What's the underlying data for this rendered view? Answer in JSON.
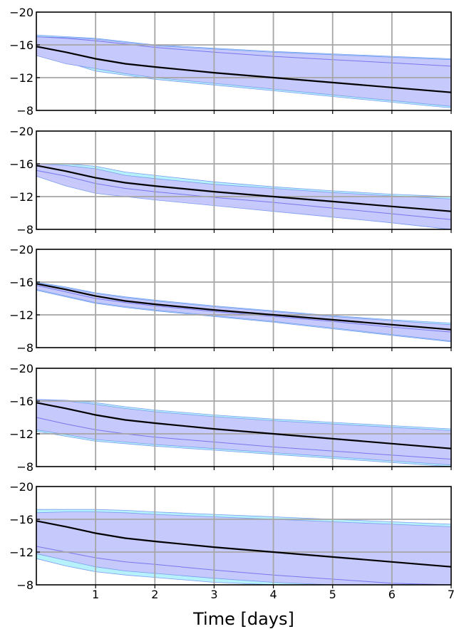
{
  "xlabel": "Time [days]",
  "chart_data": [
    {
      "type": "line",
      "x": [
        0,
        0.5,
        1,
        1.5,
        2,
        3,
        4,
        5,
        6,
        7
      ],
      "series": [
        {
          "values": [
            15.8,
            15.1,
            14.3,
            13.7,
            13.3,
            12.6,
            12.0,
            11.4,
            10.8,
            10.2
          ]
        }
      ],
      "bands": [
        {
          "lower": [
            15.0,
            13.9,
            12.8,
            12.3,
            11.8,
            11.1,
            10.4,
            9.7,
            9.0,
            8.3
          ],
          "upper": [
            17.2,
            17.0,
            16.8,
            16.4,
            16.0,
            15.6,
            15.2,
            14.9,
            14.6,
            14.3
          ],
          "color": "#b3f0fb"
        },
        {
          "lower": [
            14.7,
            13.7,
            13.1,
            12.5,
            12.0,
            11.3,
            10.6,
            9.9,
            9.2,
            8.5
          ],
          "upper": [
            17.0,
            16.9,
            16.7,
            16.3,
            15.9,
            15.5,
            15.1,
            14.8,
            14.5,
            14.2
          ],
          "color": "#c6c6fb"
        }
      ],
      "inner_line": [
        17.0,
        16.8,
        16.5,
        16.1,
        15.7,
        15.1,
        14.6,
        14.2,
        13.8,
        13.4
      ],
      "xlim": [
        0,
        7
      ],
      "ylim": [
        8,
        20
      ]
    },
    {
      "type": "line",
      "x": [
        0,
        0.5,
        1,
        1.5,
        2,
        3,
        4,
        5,
        6,
        7
      ],
      "series": [
        {
          "values": [
            15.8,
            15.1,
            14.3,
            13.7,
            13.3,
            12.6,
            12.0,
            11.4,
            10.8,
            10.2
          ]
        }
      ],
      "bands": [
        {
          "lower": [
            15.2,
            14.0,
            13.1,
            12.5,
            12.0,
            11.2,
            10.4,
            9.6,
            8.8,
            8.0
          ],
          "upper": [
            16.0,
            16.0,
            15.7,
            15.0,
            14.6,
            13.8,
            13.2,
            12.7,
            12.3,
            12.0
          ],
          "color": "#b3f0fb"
        },
        {
          "lower": [
            14.5,
            13.3,
            12.4,
            12.0,
            11.6,
            10.9,
            10.2,
            9.5,
            8.8,
            8.0
          ],
          "upper": [
            16.0,
            15.8,
            15.4,
            14.6,
            14.2,
            13.5,
            13.0,
            12.5,
            12.1,
            11.7
          ],
          "color": "#c6c6fb"
        }
      ],
      "inner_line": [
        15.2,
        14.5,
        13.6,
        13.0,
        12.6,
        11.9,
        11.3,
        10.6,
        9.9,
        9.2
      ],
      "xlim": [
        0,
        7
      ],
      "ylim": [
        8,
        20
      ]
    },
    {
      "type": "line",
      "x": [
        0,
        0.5,
        1,
        1.5,
        2,
        3,
        4,
        5,
        6,
        7
      ],
      "series": [
        {
          "values": [
            15.8,
            15.1,
            14.3,
            13.7,
            13.3,
            12.6,
            12.0,
            11.4,
            10.8,
            10.2
          ]
        }
      ],
      "bands": [
        {
          "lower": [
            15.0,
            14.2,
            13.4,
            12.9,
            12.5,
            11.8,
            11.1,
            10.3,
            9.5,
            8.7
          ],
          "upper": [
            16.0,
            15.4,
            14.7,
            14.2,
            13.8,
            13.1,
            12.5,
            11.9,
            11.4,
            11.0
          ],
          "color": "#b3f0fb"
        },
        {
          "lower": [
            15.1,
            14.3,
            13.5,
            13.0,
            12.6,
            11.9,
            11.2,
            10.4,
            9.6,
            8.8
          ],
          "upper": [
            15.9,
            15.3,
            14.6,
            14.1,
            13.7,
            13.0,
            12.4,
            11.8,
            11.3,
            10.8
          ],
          "color": "#c6c6fb"
        }
      ],
      "inner_line": [
        15.6,
        14.8,
        14.0,
        13.5,
        13.1,
        12.4,
        11.8,
        11.2,
        10.5,
        9.9
      ],
      "xlim": [
        0,
        7
      ],
      "ylim": [
        8,
        20
      ]
    },
    {
      "type": "line",
      "x": [
        0,
        0.5,
        1,
        1.5,
        2,
        3,
        4,
        5,
        6,
        7
      ],
      "series": [
        {
          "values": [
            15.8,
            15.1,
            14.3,
            13.7,
            13.3,
            12.6,
            12.0,
            11.4,
            10.8,
            10.2
          ]
        }
      ],
      "bands": [
        {
          "lower": [
            12.3,
            11.7,
            11.1,
            10.8,
            10.5,
            10.0,
            9.5,
            9.0,
            8.5,
            8.0
          ],
          "upper": [
            16.2,
            16.1,
            15.8,
            15.3,
            14.9,
            14.3,
            13.8,
            13.4,
            13.0,
            12.6
          ],
          "color": "#b3f0fb"
        },
        {
          "lower": [
            12.5,
            11.9,
            11.3,
            11.0,
            10.7,
            10.2,
            9.7,
            9.2,
            8.7,
            8.2
          ],
          "upper": [
            16.2,
            16.0,
            15.6,
            15.1,
            14.7,
            14.1,
            13.6,
            13.2,
            12.8,
            12.4
          ],
          "color": "#c6c6fb"
        }
      ],
      "inner_line": [
        14.0,
        13.2,
        12.5,
        12.0,
        11.6,
        11.0,
        10.4,
        9.9,
        9.4,
        8.9
      ],
      "xlim": [
        0,
        7
      ],
      "ylim": [
        8,
        20
      ]
    },
    {
      "type": "line",
      "x": [
        0,
        0.5,
        1,
        1.5,
        2,
        3,
        4,
        5,
        6,
        7
      ],
      "series": [
        {
          "values": [
            15.8,
            15.1,
            14.3,
            13.7,
            13.3,
            12.6,
            12.0,
            11.4,
            10.8,
            10.2
          ]
        }
      ],
      "bands": [
        {
          "lower": [
            11.2,
            10.3,
            9.6,
            9.2,
            8.9,
            8.3,
            8.0,
            8.0,
            8.0,
            8.0
          ],
          "upper": [
            17.2,
            17.2,
            17.2,
            17.1,
            16.9,
            16.6,
            16.3,
            16.0,
            15.7,
            15.4
          ],
          "color": "#b3f0fb"
        },
        {
          "lower": [
            11.8,
            11.0,
            10.2,
            9.7,
            9.4,
            8.8,
            8.3,
            8.0,
            8.0,
            8.0
          ],
          "upper": [
            16.8,
            16.9,
            16.9,
            16.8,
            16.6,
            16.3,
            16.0,
            15.7,
            15.4,
            15.1
          ],
          "color": "#c6c6fb"
        }
      ],
      "inner_line": [
        12.7,
        12.0,
        11.3,
        10.8,
        10.5,
        9.8,
        9.2,
        8.7,
        8.2,
        8.0
      ],
      "xlim": [
        0,
        7
      ],
      "ylim": [
        8,
        20
      ]
    }
  ],
  "colors": {
    "median_line": "#000000",
    "inner_line": "#7777ee",
    "band_edge": "#7a9cf0",
    "grid": "#a6a6a6",
    "frame": "#000000"
  }
}
